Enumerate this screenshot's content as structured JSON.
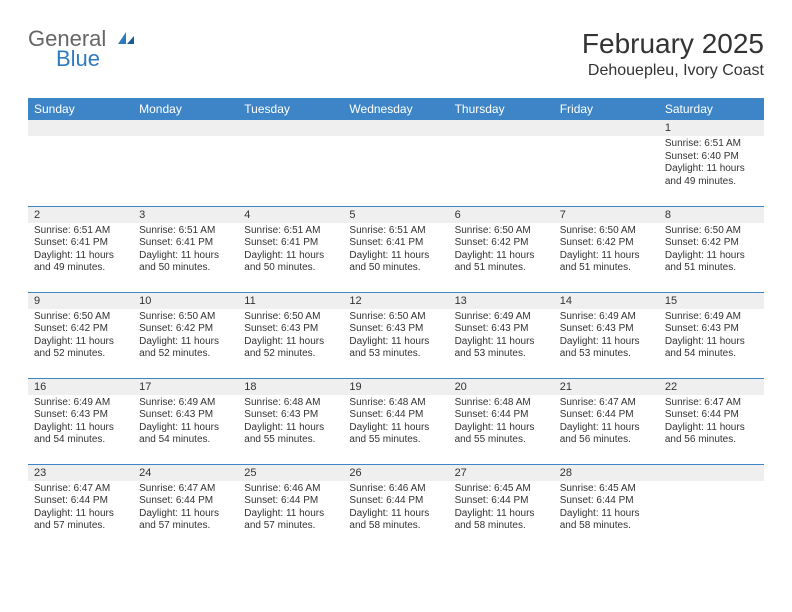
{
  "logo": {
    "word1": "General",
    "word2": "Blue"
  },
  "title": "February 2025",
  "location": "Dehouepleu, Ivory Coast",
  "dayHeaders": [
    "Sunday",
    "Monday",
    "Tuesday",
    "Wednesday",
    "Thursday",
    "Friday",
    "Saturday"
  ],
  "colors": {
    "headerBg": "#3d85c6",
    "headerFg": "#ffffff",
    "rowBorder": "#3d85c6",
    "dayBarBg": "#efefef",
    "text": "#333333",
    "logoAccent": "#2f7bbf"
  },
  "typography": {
    "title_fontsize": 28,
    "location_fontsize": 16,
    "dayheader_fontsize": 12,
    "daynum_fontsize": 11,
    "body_fontsize": 10
  },
  "calendar": {
    "type": "table",
    "weeks": [
      [
        null,
        null,
        null,
        null,
        null,
        null,
        {
          "n": "1",
          "sunrise": "6:51 AM",
          "sunset": "6:40 PM",
          "daylight": "11 hours and 49 minutes."
        }
      ],
      [
        {
          "n": "2",
          "sunrise": "6:51 AM",
          "sunset": "6:41 PM",
          "daylight": "11 hours and 49 minutes."
        },
        {
          "n": "3",
          "sunrise": "6:51 AM",
          "sunset": "6:41 PM",
          "daylight": "11 hours and 50 minutes."
        },
        {
          "n": "4",
          "sunrise": "6:51 AM",
          "sunset": "6:41 PM",
          "daylight": "11 hours and 50 minutes."
        },
        {
          "n": "5",
          "sunrise": "6:51 AM",
          "sunset": "6:41 PM",
          "daylight": "11 hours and 50 minutes."
        },
        {
          "n": "6",
          "sunrise": "6:50 AM",
          "sunset": "6:42 PM",
          "daylight": "11 hours and 51 minutes."
        },
        {
          "n": "7",
          "sunrise": "6:50 AM",
          "sunset": "6:42 PM",
          "daylight": "11 hours and 51 minutes."
        },
        {
          "n": "8",
          "sunrise": "6:50 AM",
          "sunset": "6:42 PM",
          "daylight": "11 hours and 51 minutes."
        }
      ],
      [
        {
          "n": "9",
          "sunrise": "6:50 AM",
          "sunset": "6:42 PM",
          "daylight": "11 hours and 52 minutes."
        },
        {
          "n": "10",
          "sunrise": "6:50 AM",
          "sunset": "6:42 PM",
          "daylight": "11 hours and 52 minutes."
        },
        {
          "n": "11",
          "sunrise": "6:50 AM",
          "sunset": "6:43 PM",
          "daylight": "11 hours and 52 minutes."
        },
        {
          "n": "12",
          "sunrise": "6:50 AM",
          "sunset": "6:43 PM",
          "daylight": "11 hours and 53 minutes."
        },
        {
          "n": "13",
          "sunrise": "6:49 AM",
          "sunset": "6:43 PM",
          "daylight": "11 hours and 53 minutes."
        },
        {
          "n": "14",
          "sunrise": "6:49 AM",
          "sunset": "6:43 PM",
          "daylight": "11 hours and 53 minutes."
        },
        {
          "n": "15",
          "sunrise": "6:49 AM",
          "sunset": "6:43 PM",
          "daylight": "11 hours and 54 minutes."
        }
      ],
      [
        {
          "n": "16",
          "sunrise": "6:49 AM",
          "sunset": "6:43 PM",
          "daylight": "11 hours and 54 minutes."
        },
        {
          "n": "17",
          "sunrise": "6:49 AM",
          "sunset": "6:43 PM",
          "daylight": "11 hours and 54 minutes."
        },
        {
          "n": "18",
          "sunrise": "6:48 AM",
          "sunset": "6:43 PM",
          "daylight": "11 hours and 55 minutes."
        },
        {
          "n": "19",
          "sunrise": "6:48 AM",
          "sunset": "6:44 PM",
          "daylight": "11 hours and 55 minutes."
        },
        {
          "n": "20",
          "sunrise": "6:48 AM",
          "sunset": "6:44 PM",
          "daylight": "11 hours and 55 minutes."
        },
        {
          "n": "21",
          "sunrise": "6:47 AM",
          "sunset": "6:44 PM",
          "daylight": "11 hours and 56 minutes."
        },
        {
          "n": "22",
          "sunrise": "6:47 AM",
          "sunset": "6:44 PM",
          "daylight": "11 hours and 56 minutes."
        }
      ],
      [
        {
          "n": "23",
          "sunrise": "6:47 AM",
          "sunset": "6:44 PM",
          "daylight": "11 hours and 57 minutes."
        },
        {
          "n": "24",
          "sunrise": "6:47 AM",
          "sunset": "6:44 PM",
          "daylight": "11 hours and 57 minutes."
        },
        {
          "n": "25",
          "sunrise": "6:46 AM",
          "sunset": "6:44 PM",
          "daylight": "11 hours and 57 minutes."
        },
        {
          "n": "26",
          "sunrise": "6:46 AM",
          "sunset": "6:44 PM",
          "daylight": "11 hours and 58 minutes."
        },
        {
          "n": "27",
          "sunrise": "6:45 AM",
          "sunset": "6:44 PM",
          "daylight": "11 hours and 58 minutes."
        },
        {
          "n": "28",
          "sunrise": "6:45 AM",
          "sunset": "6:44 PM",
          "daylight": "11 hours and 58 minutes."
        },
        null
      ]
    ]
  },
  "labels": {
    "sunrise": "Sunrise: ",
    "sunset": "Sunset: ",
    "daylight": "Daylight: "
  }
}
